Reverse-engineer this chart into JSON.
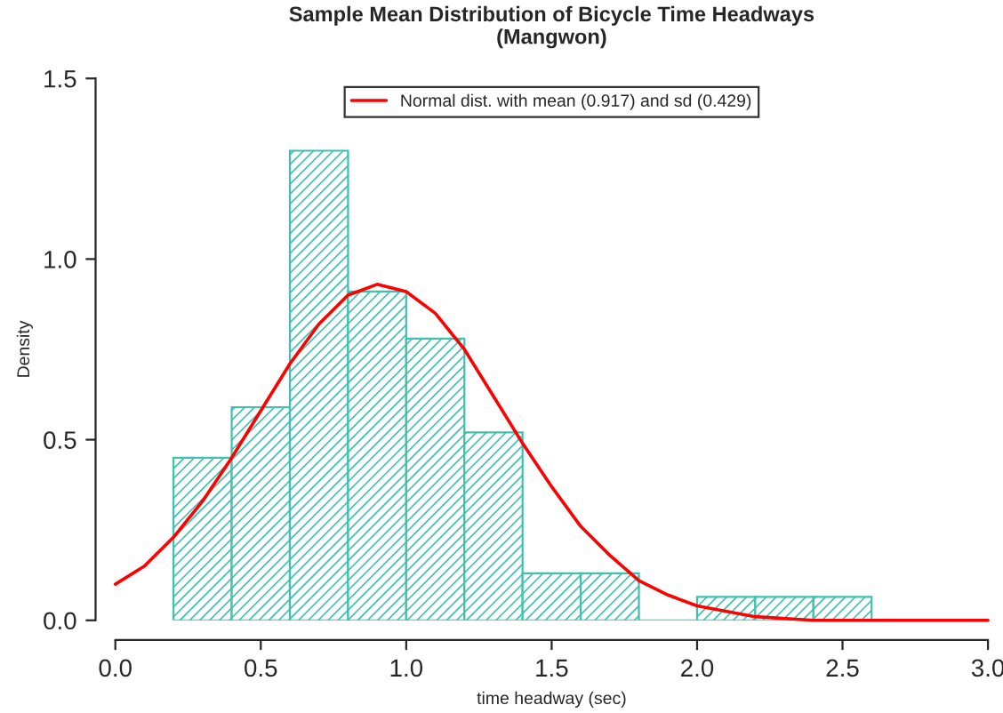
{
  "chart_data": {
    "type": "histogram",
    "title": "Sample Mean Distribution of Bicycle Time Headways\n(Mangwon)",
    "xlabel": "time headway (sec)",
    "ylabel": "Density",
    "xlim": [
      0,
      3
    ],
    "ylim": [
      0,
      1.5
    ],
    "xticks": [
      {
        "value": 0,
        "label": "0.0"
      },
      0.5,
      {
        "value": 1,
        "label": "1.0"
      },
      1.5,
      {
        "value": 2,
        "label": "2.0"
      },
      2.5,
      {
        "value": 3,
        "label": "3.0"
      }
    ],
    "yticks": [
      {
        "value": 0,
        "label": "0.0"
      },
      0.5,
      {
        "value": 1,
        "label": "1.0"
      },
      1.5
    ],
    "legend": "top",
    "grid": false,
    "series": [
      {
        "color": "#40c0b0",
        "bins": [
          0.2,
          0.4,
          0.6,
          0.8,
          1.0,
          1.2,
          1.4,
          1.6,
          1.8,
          2.0,
          2.2,
          2.4,
          2.6
        ],
        "values": [
          0.45,
          0.59,
          1.3,
          0.91,
          0.78,
          0.52,
          0.13,
          0.13,
          0,
          0.065,
          0.065,
          0.065
        ]
      },
      {
        "type": "line",
        "name": "Normal dist. with mean (0.917) and sd (0.429)",
        "color": "#ff0000",
        "x": [
          0,
          0.1,
          0.2,
          0.3,
          0.4,
          0.5,
          0.6,
          0.7,
          0.8,
          0.9,
          1.0,
          1.1,
          1.2,
          1.3,
          1.4,
          1.5,
          1.6,
          1.7,
          1.8,
          1.9,
          2.0,
          2.2,
          2.4,
          2.6,
          2.8,
          3.0
        ],
        "values": [
          0.1,
          0.15,
          0.23,
          0.33,
          0.45,
          0.58,
          0.71,
          0.82,
          0.9,
          0.93,
          0.91,
          0.85,
          0.75,
          0.62,
          0.49,
          0.37,
          0.26,
          0.18,
          0.11,
          0.07,
          0.04,
          0.01,
          0.0,
          0.0,
          0.0,
          0.0
        ]
      }
    ]
  }
}
